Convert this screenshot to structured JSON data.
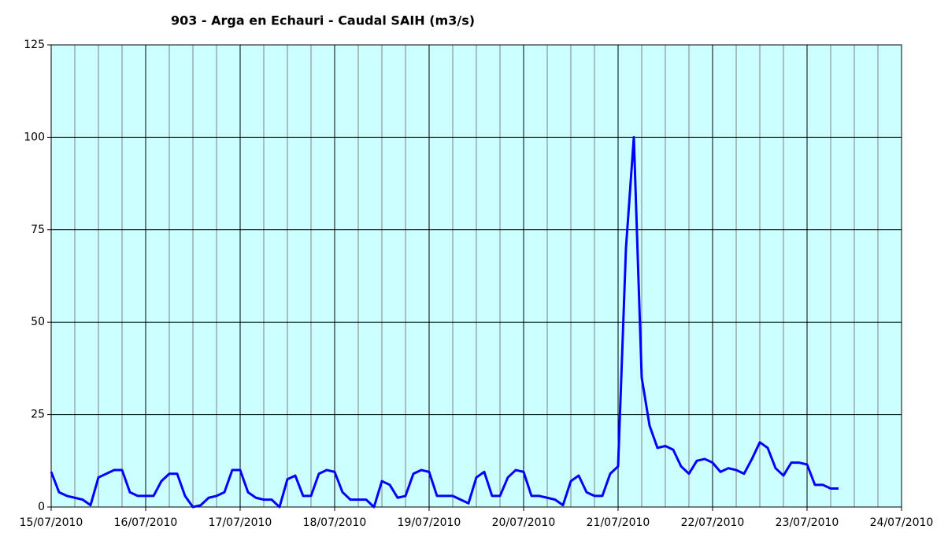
{
  "chart_data": {
    "type": "line",
    "title": "903 - Arga en Echauri - Caudal SAIH (m3/s)",
    "xticks": [
      "15/07/2010",
      "16/07/2010",
      "17/07/2010",
      "18/07/2010",
      "19/07/2010",
      "20/07/2010",
      "21/07/2010",
      "22/07/2010",
      "23/07/2010",
      "24/07/2010"
    ],
    "x_minor_divisions": 4,
    "ylim": [
      0,
      125
    ],
    "yticks": [
      0,
      25,
      50,
      75,
      100,
      125
    ],
    "grid": true,
    "background": "#ccffff",
    "series": [
      {
        "color": "#0000ff",
        "values": [
          9.5,
          4,
          3,
          2.5,
          2,
          0.5,
          8,
          9,
          10,
          10,
          4,
          3,
          3,
          3,
          7,
          9,
          9,
          3,
          0,
          0.5,
          2.5,
          3,
          4,
          10,
          10,
          4,
          2.5,
          2,
          2,
          0,
          7.5,
          8.5,
          3,
          3,
          9,
          10,
          9.5,
          4,
          2,
          2,
          2,
          0,
          7,
          6,
          2.5,
          3,
          9,
          10,
          9.5,
          3,
          3,
          3,
          2,
          1,
          8,
          9.5,
          3,
          3,
          8,
          10,
          9.5,
          3,
          3,
          2.5,
          2,
          0.5,
          7,
          8.5,
          4,
          3,
          3,
          9,
          11,
          70,
          100,
          35,
          22,
          16,
          16.5,
          15.5,
          11,
          9,
          12.5,
          13,
          12,
          9.5,
          10.5,
          10,
          9,
          13,
          17.5,
          16,
          10.5,
          8.5,
          12,
          12,
          11.5,
          6,
          6,
          5,
          5,
          null,
          null,
          null,
          null,
          null,
          null,
          null,
          null
        ]
      }
    ]
  }
}
